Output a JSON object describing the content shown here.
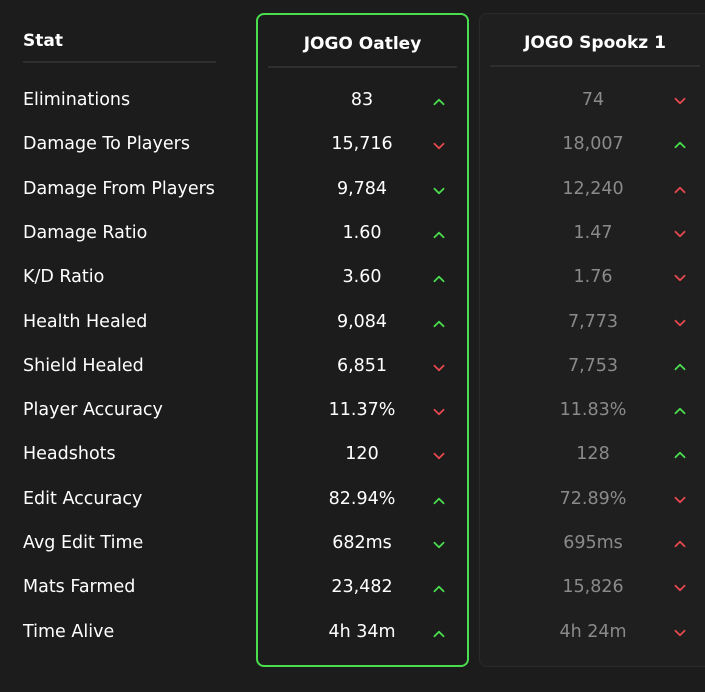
{
  "header": {
    "stat": "Stat"
  },
  "players": [
    {
      "name": "JOGO Oatley",
      "highlighted": true
    },
    {
      "name": "JOGO Spookz 1",
      "highlighted": false
    }
  ],
  "colors": {
    "up": "#4ade4f",
    "down": "#e5484d",
    "highlight_border": "#4ade4f"
  },
  "rows": [
    {
      "stat": "Eliminations",
      "p1": "83",
      "p1_trend": "up",
      "p2": "74",
      "p2_trend": "down"
    },
    {
      "stat": "Damage To Players",
      "p1": "15,716",
      "p1_trend": "down",
      "p2": "18,007",
      "p2_trend": "up"
    },
    {
      "stat": "Damage From Players",
      "p1": "9,784",
      "p1_trend": "down-green",
      "p2": "12,240",
      "p2_trend": "up-red"
    },
    {
      "stat": "Damage Ratio",
      "p1": "1.60",
      "p1_trend": "up",
      "p2": "1.47",
      "p2_trend": "down"
    },
    {
      "stat": "K/D Ratio",
      "p1": "3.60",
      "p1_trend": "up",
      "p2": "1.76",
      "p2_trend": "down"
    },
    {
      "stat": "Health Healed",
      "p1": "9,084",
      "p1_trend": "up",
      "p2": "7,773",
      "p2_trend": "down"
    },
    {
      "stat": "Shield Healed",
      "p1": "6,851",
      "p1_trend": "down",
      "p2": "7,753",
      "p2_trend": "up"
    },
    {
      "stat": "Player Accuracy",
      "p1": "11.37%",
      "p1_trend": "down",
      "p2": "11.83%",
      "p2_trend": "up"
    },
    {
      "stat": "Headshots",
      "p1": "120",
      "p1_trend": "down",
      "p2": "128",
      "p2_trend": "up"
    },
    {
      "stat": "Edit Accuracy",
      "p1": "82.94%",
      "p1_trend": "up",
      "p2": "72.89%",
      "p2_trend": "down"
    },
    {
      "stat": "Avg Edit Time",
      "p1": "682ms",
      "p1_trend": "down-green",
      "p2": "695ms",
      "p2_trend": "up-red"
    },
    {
      "stat": "Mats Farmed",
      "p1": "23,482",
      "p1_trend": "up",
      "p2": "15,826",
      "p2_trend": "down"
    },
    {
      "stat": "Time Alive",
      "p1": "4h 34m",
      "p1_trend": "up",
      "p2": "4h 24m",
      "p2_trend": "down"
    }
  ]
}
